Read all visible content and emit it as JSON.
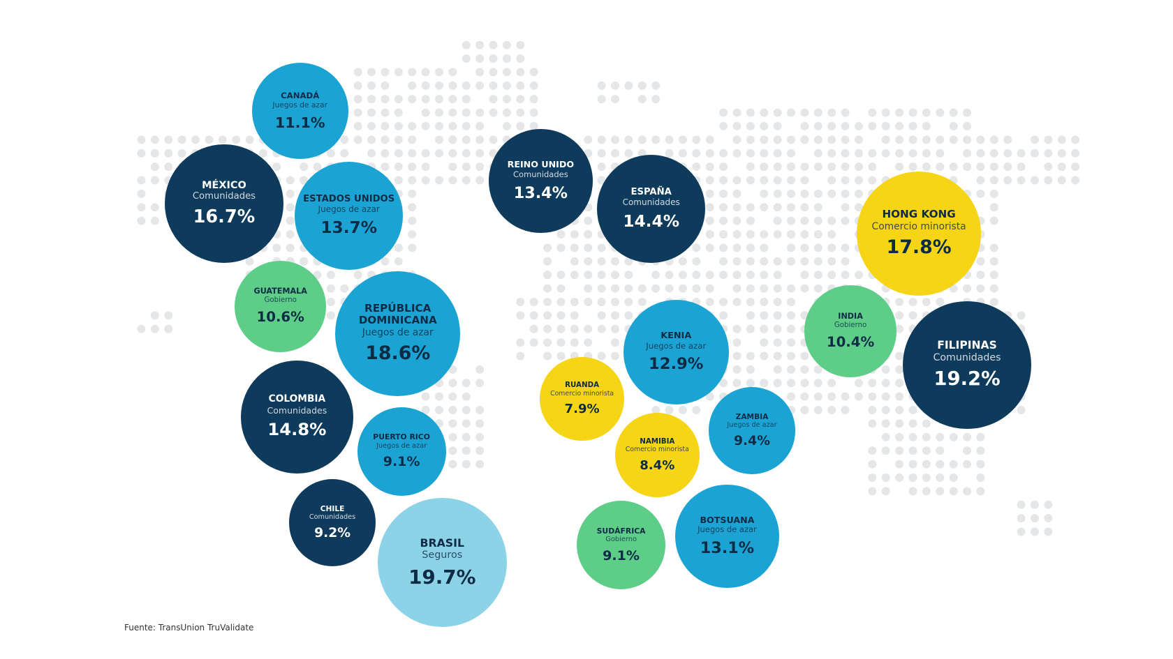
{
  "chart_data": {
    "type": "bubble",
    "categories": [
      "CANADÁ",
      "MÉXICO",
      "ESTADOS UNIDOS",
      "GUATEMALA",
      "REPÚBLICA DOMINICANA",
      "COLOMBIA",
      "PUERTO RICO",
      "CHILE",
      "BRASIL",
      "REINO UNIDO",
      "ESPAÑA",
      "KENIA",
      "RUANDA",
      "NAMIBIA",
      "ZAMBIA",
      "SUDÁFRICA",
      "BOTSUANA",
      "HONG KONG",
      "INDIA",
      "FILIPINAS"
    ],
    "subtitles": [
      "Juegos de azar",
      "Comunidades",
      "Juegos de azar",
      "Gobierno",
      "Juegos de azar",
      "Comunidades",
      "Juegos de azar",
      "Comunidades",
      "Seguros",
      "Comunidades",
      "Comunidades",
      "Juegos de azar",
      "Comercio minorista",
      "Comercio minorista",
      "Juegos de azar",
      "Gobierno",
      "Juegos de azar",
      "Comercio minorista",
      "Gobierno",
      "Comunidades"
    ],
    "values": [
      11.1,
      16.7,
      13.7,
      10.6,
      18.6,
      14.8,
      9.1,
      9.2,
      19.7,
      13.4,
      14.4,
      12.9,
      7.9,
      8.4,
      9.4,
      9.1,
      13.1,
      17.8,
      10.4,
      19.2
    ],
    "value_labels": [
      "11.1%",
      "16.7%",
      "13.7%",
      "10.6%",
      "18.6%",
      "14.8%",
      "9.1%",
      "9.2%",
      "19.7%",
      "13.4%",
      "14.4%",
      "12.9%",
      "7.9%",
      "8.4%",
      "9.4%",
      "9.1%",
      "13.1%",
      "17.8%",
      "10.4%",
      "19.2%"
    ],
    "colors": [
      "#1ba4d3",
      "#0e3a5c",
      "#1ba4d3",
      "#5dcd88",
      "#1ba4d3",
      "#0e3a5c",
      "#1ba4d3",
      "#0e3a5c",
      "#8dd3e8",
      "#0e3a5c",
      "#0e3a5c",
      "#1ba4d3",
      "#f6d416",
      "#f6d416",
      "#1ba4d3",
      "#5dcd88",
      "#1ba4d3",
      "#f6d416",
      "#5dcd88",
      "#0e3a5c"
    ],
    "source": "Fuente: TransUnion TruValidate"
  }
}
